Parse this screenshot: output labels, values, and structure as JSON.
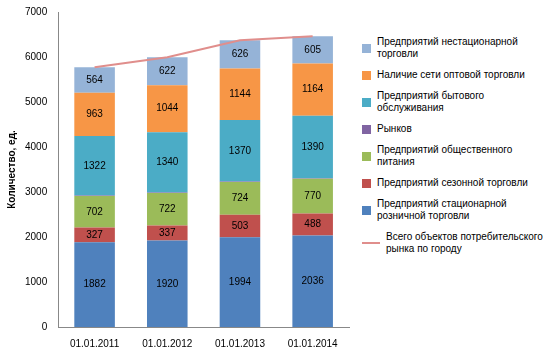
{
  "chart_data": {
    "type": "bar",
    "stacked": true,
    "y_label": "Количество, ед.",
    "categories": [
      "01.01.2011",
      "01.01.2012",
      "01.01.2013",
      "01.01.2014"
    ],
    "ylim": [
      0,
      7000
    ],
    "yticks": [
      0,
      1000,
      2000,
      3000,
      4000,
      5000,
      6000,
      7000
    ],
    "grid": false,
    "legend": "right",
    "series": [
      {
        "name": "Предприятий стационарной розничной торговли",
        "color": "#4f81bd",
        "values": [
          1882,
          1920,
          1994,
          2036
        ],
        "data_labels": true
      },
      {
        "name": "Предприятий сезонной  торговли",
        "color": "#c0504d",
        "values": [
          327,
          337,
          503,
          488
        ],
        "data_labels": true
      },
      {
        "name": "Предприятий общественного питания",
        "color": "#9bbb59",
        "values": [
          702,
          722,
          724,
          770
        ],
        "data_labels": true
      },
      {
        "name": "Рынков",
        "color": "#8064a2",
        "values": [
          10,
          10,
          10,
          10
        ],
        "data_labels": false
      },
      {
        "name": "Предприятий бытового обслуживания",
        "color": "#4bacc6",
        "values": [
          1322,
          1340,
          1370,
          1390
        ],
        "data_labels": true
      },
      {
        "name": "Наличие сети оптовой торговли",
        "color": "#f79646",
        "values": [
          963,
          1044,
          1144,
          1164
        ],
        "data_labels": true
      },
      {
        "name": "Предприятий нестационарной торговли",
        "color": "#95b3d7",
        "values": [
          564,
          622,
          626,
          605
        ],
        "data_labels": true
      },
      {
        "name": "Всего объектов потребительского рынка по городу",
        "type": "line",
        "color": "#e08e8c",
        "values": [
          5770,
          5995,
          6371,
          6463
        ],
        "data_labels": false
      }
    ]
  }
}
